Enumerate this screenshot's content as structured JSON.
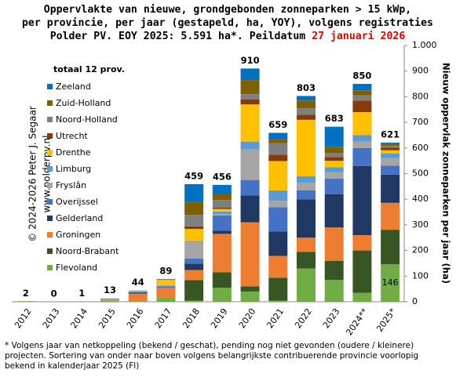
{
  "chart_data": {
    "type": "stacked_bar",
    "title_lines": [
      "Oppervlakte van nieuwe, grondgebonden zonneparken > 15 kWp,",
      "per provincie, per jaar (gestapeld, ha, YOY), volgens registraties",
      "Polder PV. EOY 2025: 5.591 ha*. Peildatum"
    ],
    "title_date": "27 januari 2026",
    "y_label": "Nieuw oppervlak zonneparken per jaar (ha)",
    "legend_title": "totaal 12 prov.",
    "watermark": [
      "© 2024-2026  Peter J. Segaar",
      "www.polderpv.nl"
    ],
    "footnote": [
      "* Volgens jaar van netkoppeling (bekend / geschat), pending nog niet gevonden (oudere / kleinere)",
      "projecten. Sortering van onder naar boven volgens belangrijkste contribuerende provincie voorlopig",
      "bekend in kalenderjaar 2025 (Fl)"
    ],
    "categories": [
      "2012",
      "2013",
      "2014",
      "2015",
      "2016",
      "2017",
      "2018",
      "2019",
      "2020",
      "2021",
      "2022",
      "2023",
      "2024**",
      "2025*"
    ],
    "totals": [
      2,
      0,
      1,
      13,
      44,
      89,
      459,
      456,
      910,
      659,
      803,
      683,
      850,
      621
    ],
    "series": [
      {
        "name": "Flevoland",
        "color": "#70ad47",
        "values": [
          0,
          0,
          0,
          3,
          2,
          15,
          4,
          55,
          40,
          4,
          130,
          85,
          35,
          146
        ]
      },
      {
        "name": "Noord-Brabant",
        "color": "#375623",
        "values": [
          1,
          0,
          0,
          0,
          0,
          0,
          80,
          60,
          20,
          90,
          65,
          75,
          165,
          135
        ]
      },
      {
        "name": "Groningen",
        "color": "#ed7d31",
        "values": [
          1,
          0,
          0,
          2,
          30,
          40,
          40,
          150,
          250,
          85,
          55,
          130,
          60,
          105
        ]
      },
      {
        "name": "Gelderland",
        "color": "#203864",
        "values": [
          0,
          0,
          0,
          0,
          3,
          0,
          25,
          12,
          105,
          95,
          150,
          130,
          270,
          110
        ]
      },
      {
        "name": "Overijssel",
        "color": "#4472c4",
        "values": [
          0,
          0,
          0,
          0,
          3,
          5,
          20,
          60,
          60,
          95,
          35,
          60,
          70,
          35
        ]
      },
      {
        "name": "Fryslân",
        "color": "#a5a5a5",
        "values": [
          0,
          0,
          0,
          5,
          0,
          5,
          70,
          5,
          120,
          25,
          30,
          25,
          25,
          30
        ]
      },
      {
        "name": "Limburg",
        "color": "#5b9bd5",
        "values": [
          0,
          0,
          0,
          0,
          2,
          0,
          0,
          10,
          30,
          40,
          25,
          20,
          25,
          18
        ]
      },
      {
        "name": "Drenthe",
        "color": "#ffc000",
        "values": [
          0,
          0,
          0,
          0,
          2,
          20,
          45,
          10,
          145,
          115,
          220,
          25,
          90,
          12
        ]
      },
      {
        "name": "Utrecht",
        "color": "#843c0c",
        "values": [
          0,
          0,
          0,
          0,
          0,
          0,
          10,
          5,
          20,
          25,
          20,
          15,
          45,
          10
        ]
      },
      {
        "name": "Noord-Holland",
        "color": "#7f7f7f",
        "values": [
          0,
          0,
          1,
          3,
          2,
          4,
          45,
          30,
          20,
          45,
          25,
          15,
          20,
          7
        ]
      },
      {
        "name": "Zuid-Holland",
        "color": "#7f6000",
        "values": [
          0,
          0,
          0,
          0,
          0,
          0,
          50,
          25,
          55,
          15,
          30,
          25,
          20,
          7
        ]
      },
      {
        "name": "Zeeland",
        "color": "#0070c0",
        "values": [
          0,
          0,
          0,
          0,
          0,
          0,
          70,
          34,
          45,
          25,
          18,
          78,
          25,
          6
        ]
      }
    ],
    "ylim": [
      0,
      1000
    ],
    "yticks": [
      0,
      100,
      200,
      300,
      400,
      500,
      600,
      700,
      800,
      900,
      {
        "value": 1000,
        "label": "1.000"
      }
    ],
    "grid": false
  }
}
